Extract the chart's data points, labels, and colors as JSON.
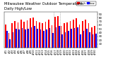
{
  "title": "Milwaukee Weather Outdoor Temperature",
  "subtitle": "Daily High/Low",
  "highs": [
    62,
    40,
    65,
    72,
    68,
    75,
    70,
    73,
    78,
    80,
    72,
    68,
    65,
    70,
    75,
    60,
    82,
    85,
    58,
    65,
    68,
    72,
    75,
    78,
    62,
    72,
    75,
    65,
    55,
    58
  ],
  "lows": [
    45,
    22,
    42,
    50,
    48,
    52,
    48,
    50,
    55,
    58,
    50,
    48,
    45,
    48,
    52,
    40,
    55,
    58,
    36,
    42,
    45,
    50,
    52,
    55,
    35,
    45,
    50,
    42,
    35,
    38
  ],
  "highlight_indices": [
    16,
    17
  ],
  "bar_width": 0.38,
  "high_color": "#ff0000",
  "low_color": "#0000ff",
  "background_color": "#ffffff",
  "plot_bg": "#ffffff",
  "ylim_min": 0,
  "ylim_max": 95,
  "yticks": [
    10,
    20,
    30,
    40,
    50,
    60,
    70,
    80,
    90
  ],
  "x_labels": [
    "4/1",
    "4/2",
    "4/3",
    "4/4",
    "4/5",
    "4/6",
    "4/7",
    "4/8",
    "4/9",
    "4/10",
    "4/11",
    "4/12",
    "4/13",
    "4/14",
    "4/15",
    "4/16",
    "4/17",
    "4/18",
    "4/19",
    "4/20",
    "4/21",
    "4/22",
    "4/23",
    "4/24",
    "4/25",
    "4/26",
    "4/27",
    "4/28",
    "4/29",
    "4/30"
  ],
  "legend_high": "High",
  "legend_low": "Low",
  "title_fontsize": 3.8,
  "tick_fontsize": 2.8,
  "legend_fontsize": 2.8
}
